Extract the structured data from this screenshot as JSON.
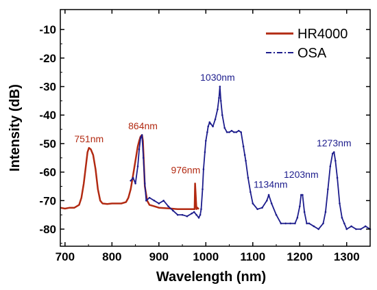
{
  "chart_data": {
    "type": "line",
    "xlabel": "Wavelength (nm)",
    "ylabel": "Intensity (dB)",
    "xlim": [
      690,
      1350
    ],
    "ylim": [
      -86,
      -3
    ],
    "xticks": [
      700,
      800,
      900,
      1000,
      1100,
      1200,
      1300
    ],
    "yticks": [
      -10,
      -20,
      -30,
      -40,
      -50,
      -60,
      -70,
      -80
    ],
    "xtick_labels": [
      "700",
      "800",
      "900",
      "1000",
      "1100",
      "1200",
      "1300"
    ],
    "ytick_labels": [
      "-10",
      "-20",
      "-30",
      "-40",
      "-50",
      "-60",
      "-70",
      "-80"
    ],
    "legend_position": "top-right",
    "series": [
      {
        "name": "HR4000",
        "color": "#b22a12",
        "x": [
          690,
          700,
          710,
          720,
          730,
          735,
          740,
          745,
          748,
          751,
          755,
          760,
          765,
          770,
          775,
          780,
          790,
          800,
          810,
          820,
          830,
          835,
          840,
          845,
          850,
          855,
          858,
          861,
          864,
          866,
          868,
          870,
          875,
          880,
          890,
          900,
          920,
          940,
          960,
          976,
          977,
          980,
          982,
          985
        ],
        "y": [
          -72.5,
          -72.8,
          -72.5,
          -72.5,
          -71.5,
          -69,
          -64,
          -57,
          -53,
          -51.5,
          -52,
          -54,
          -59,
          -66,
          -70,
          -71,
          -71.2,
          -71,
          -71,
          -71,
          -70.5,
          -69,
          -66,
          -61,
          -56,
          -51,
          -49,
          -47.5,
          -47,
          -49,
          -57,
          -65,
          -70,
          -71.5,
          -72,
          -72.5,
          -72.7,
          -73,
          -73,
          -73,
          -64,
          -73,
          -72.5,
          -73
        ]
      },
      {
        "name": "OSA",
        "color": "#1c1c8c",
        "x": [
          840,
          845,
          850,
          855,
          858,
          861,
          864,
          867,
          870,
          873,
          880,
          890,
          900,
          910,
          920,
          930,
          940,
          950,
          960,
          970,
          975,
          980,
          985,
          988,
          990,
          993,
          995,
          998,
          1000,
          1003,
          1005,
          1008,
          1010,
          1015,
          1020,
          1025,
          1028,
          1030,
          1032,
          1035,
          1040,
          1045,
          1050,
          1055,
          1060,
          1065,
          1070,
          1075,
          1080,
          1083,
          1085,
          1090,
          1095,
          1100,
          1110,
          1120,
          1130,
          1134,
          1140,
          1150,
          1160,
          1170,
          1180,
          1190,
          1195,
          1200,
          1203,
          1206,
          1210,
          1215,
          1220,
          1230,
          1240,
          1250,
          1255,
          1260,
          1265,
          1270,
          1273,
          1276,
          1280,
          1285,
          1290,
          1295,
          1300,
          1310,
          1320,
          1330,
          1340,
          1350
        ],
        "y": [
          -63,
          -62,
          -64,
          -58,
          -52,
          -48,
          -47,
          -55,
          -64,
          -70,
          -69,
          -70,
          -71,
          -70,
          -72,
          -73.5,
          -75,
          -75,
          -75.5,
          -74.5,
          -74,
          -75,
          -76,
          -75,
          -73,
          -66,
          -59,
          -53,
          -49,
          -46,
          -44,
          -42.5,
          -43,
          -44,
          -41.5,
          -38,
          -34,
          -30,
          -35,
          -40,
          -44.5,
          -46,
          -46,
          -45.5,
          -46,
          -46,
          -45.5,
          -46,
          -51,
          -54,
          -56,
          -62,
          -67,
          -71,
          -73,
          -72.5,
          -70,
          -68,
          -71,
          -75,
          -78,
          -78,
          -78,
          -78,
          -76,
          -72,
          -68,
          -68,
          -74,
          -78,
          -78,
          -79,
          -80,
          -78,
          -74,
          -66,
          -58,
          -53.5,
          -53,
          -56,
          -62,
          -71,
          -76,
          -78,
          -80,
          -79,
          -80,
          -80,
          -79,
          -80
        ]
      }
    ],
    "annotations": [
      {
        "text": "751nm",
        "x": 751,
        "y": -49.5,
        "color": "#b22a12"
      },
      {
        "text": "864nm",
        "x": 866,
        "y": -45,
        "color": "#b22a12"
      },
      {
        "text": "976nm",
        "x": 957,
        "y": -60.5,
        "color": "#b22a12"
      },
      {
        "text": "1030nm",
        "x": 1025,
        "y": -28,
        "color": "#1c1c8c"
      },
      {
        "text": "1134nm",
        "x": 1138,
        "y": -65.5,
        "color": "#1c1c8c"
      },
      {
        "text": "1203nm",
        "x": 1203,
        "y": -62,
        "color": "#1c1c8c"
      },
      {
        "text": "1273nm",
        "x": 1273,
        "y": -51,
        "color": "#1c1c8c"
      }
    ]
  }
}
